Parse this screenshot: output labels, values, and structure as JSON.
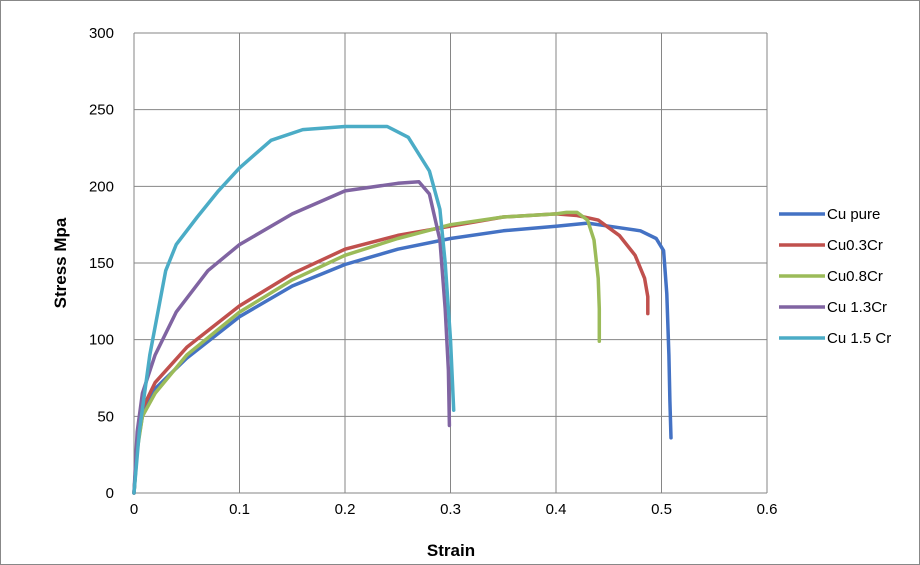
{
  "chart_data": {
    "type": "line",
    "xlabel": "Strain",
    "ylabel": "Stress Mpa",
    "xlim": [
      0,
      0.6
    ],
    "ylim": [
      0,
      300
    ],
    "xticks": [
      "0",
      "0.1",
      "0.2",
      "0.3",
      "0.4",
      "0.5",
      "0.6"
    ],
    "yticks": [
      "0",
      "50",
      "100",
      "150",
      "200",
      "250",
      "300"
    ],
    "xtick_values": [
      0,
      0.1,
      0.2,
      0.3,
      0.4,
      0.5,
      0.6
    ],
    "ytick_values": [
      0,
      50,
      100,
      150,
      200,
      250,
      300
    ],
    "grid": true,
    "legend_position": "right",
    "series": [
      {
        "name": "Cu pure",
        "color": "#4472C4",
        "points": [
          [
            0,
            0
          ],
          [
            0.003,
            30
          ],
          [
            0.008,
            50
          ],
          [
            0.02,
            68
          ],
          [
            0.05,
            88
          ],
          [
            0.1,
            115
          ],
          [
            0.15,
            135
          ],
          [
            0.2,
            149
          ],
          [
            0.25,
            159
          ],
          [
            0.3,
            166
          ],
          [
            0.35,
            171
          ],
          [
            0.4,
            174
          ],
          [
            0.43,
            176
          ],
          [
            0.45,
            174
          ],
          [
            0.48,
            171
          ],
          [
            0.495,
            166
          ],
          [
            0.502,
            158
          ],
          [
            0.505,
            130
          ],
          [
            0.507,
            90
          ],
          [
            0.508,
            60
          ],
          [
            0.509,
            36
          ]
        ]
      },
      {
        "name": "Cu0.3Cr",
        "color": "#C0504D",
        "points": [
          [
            0,
            0
          ],
          [
            0.003,
            30
          ],
          [
            0.008,
            55
          ],
          [
            0.02,
            72
          ],
          [
            0.05,
            95
          ],
          [
            0.1,
            122
          ],
          [
            0.15,
            143
          ],
          [
            0.2,
            159
          ],
          [
            0.25,
            168
          ],
          [
            0.3,
            174
          ],
          [
            0.35,
            180
          ],
          [
            0.4,
            182
          ],
          [
            0.42,
            181
          ],
          [
            0.44,
            178
          ],
          [
            0.46,
            168
          ],
          [
            0.475,
            155
          ],
          [
            0.484,
            140
          ],
          [
            0.487,
            128
          ],
          [
            0.487,
            117
          ]
        ]
      },
      {
        "name": "Cu0.8Cr",
        "color": "#9BBB59",
        "points": [
          [
            0,
            0
          ],
          [
            0.003,
            28
          ],
          [
            0.008,
            50
          ],
          [
            0.02,
            65
          ],
          [
            0.05,
            90
          ],
          [
            0.1,
            118
          ],
          [
            0.15,
            139
          ],
          [
            0.2,
            155
          ],
          [
            0.25,
            166
          ],
          [
            0.3,
            175
          ],
          [
            0.35,
            180
          ],
          [
            0.4,
            182
          ],
          [
            0.41,
            183
          ],
          [
            0.42,
            183
          ],
          [
            0.43,
            178
          ],
          [
            0.436,
            165
          ],
          [
            0.44,
            140
          ],
          [
            0.441,
            120
          ],
          [
            0.441,
            99
          ]
        ]
      },
      {
        "name": "Cu 1.3Cr",
        "color": "#8064A2",
        "points": [
          [
            0,
            0
          ],
          [
            0.003,
            40
          ],
          [
            0.008,
            65
          ],
          [
            0.02,
            90
          ],
          [
            0.04,
            118
          ],
          [
            0.07,
            145
          ],
          [
            0.1,
            162
          ],
          [
            0.15,
            182
          ],
          [
            0.2,
            197
          ],
          [
            0.25,
            202
          ],
          [
            0.27,
            203
          ],
          [
            0.28,
            195
          ],
          [
            0.29,
            165
          ],
          [
            0.295,
            120
          ],
          [
            0.298,
            80
          ],
          [
            0.299,
            44
          ]
        ]
      },
      {
        "name": "Cu 1.5 Cr",
        "color": "#4BACC6",
        "points": [
          [
            0,
            0
          ],
          [
            0.005,
            40
          ],
          [
            0.015,
            90
          ],
          [
            0.03,
            145
          ],
          [
            0.04,
            162
          ],
          [
            0.06,
            180
          ],
          [
            0.08,
            197
          ],
          [
            0.1,
            212
          ],
          [
            0.13,
            230
          ],
          [
            0.16,
            237
          ],
          [
            0.2,
            239
          ],
          [
            0.24,
            239
          ],
          [
            0.26,
            232
          ],
          [
            0.28,
            210
          ],
          [
            0.29,
            185
          ],
          [
            0.295,
            150
          ],
          [
            0.3,
            100
          ],
          [
            0.302,
            70
          ],
          [
            0.303,
            54
          ]
        ]
      }
    ]
  }
}
